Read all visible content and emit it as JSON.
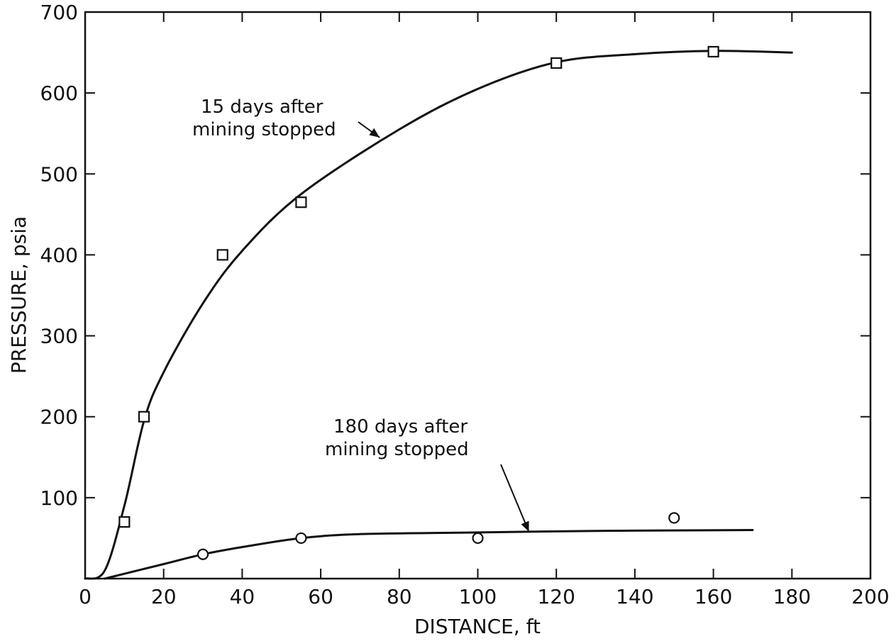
{
  "chart_data": {
    "type": "line",
    "title": "",
    "xlabel": "DISTANCE, ft",
    "ylabel": "PRESSURE, psia",
    "xlim": [
      0,
      200
    ],
    "ylim": [
      0,
      700
    ],
    "x_ticks": [
      0,
      20,
      40,
      60,
      80,
      100,
      120,
      140,
      160,
      180,
      200
    ],
    "y_ticks": [
      100,
      200,
      300,
      400,
      500,
      600,
      700
    ],
    "x_tick_labels": [
      "0",
      "20",
      "40",
      "60",
      "80",
      "100",
      "120",
      "140",
      "160",
      "180",
      "200"
    ],
    "y_tick_labels": [
      "100",
      "200",
      "300",
      "400",
      "500",
      "600",
      "700"
    ],
    "grid": false,
    "series": [
      {
        "marker": "square",
        "points": [
          {
            "x": 10,
            "y": 70
          },
          {
            "x": 15,
            "y": 200
          },
          {
            "x": 35,
            "y": 400
          },
          {
            "x": 55,
            "y": 465
          },
          {
            "x": 120,
            "y": 637
          },
          {
            "x": 160,
            "y": 651
          }
        ],
        "curve": [
          {
            "x": 0,
            "y": 0
          },
          {
            "x": 5,
            "y": 10
          },
          {
            "x": 10,
            "y": 90
          },
          {
            "x": 15,
            "y": 195
          },
          {
            "x": 20,
            "y": 255
          },
          {
            "x": 30,
            "y": 340
          },
          {
            "x": 40,
            "y": 405
          },
          {
            "x": 55,
            "y": 475
          },
          {
            "x": 80,
            "y": 555
          },
          {
            "x": 100,
            "y": 605
          },
          {
            "x": 120,
            "y": 638
          },
          {
            "x": 140,
            "y": 648
          },
          {
            "x": 160,
            "y": 652
          },
          {
            "x": 180,
            "y": 650
          }
        ]
      },
      {
        "marker": "circle",
        "points": [
          {
            "x": 30,
            "y": 30
          },
          {
            "x": 55,
            "y": 50
          },
          {
            "x": 100,
            "y": 50
          },
          {
            "x": 150,
            "y": 75
          }
        ],
        "curve": [
          {
            "x": 5,
            "y": 0
          },
          {
            "x": 20,
            "y": 18
          },
          {
            "x": 30,
            "y": 30
          },
          {
            "x": 40,
            "y": 39
          },
          {
            "x": 55,
            "y": 50
          },
          {
            "x": 70,
            "y": 55
          },
          {
            "x": 100,
            "y": 57
          },
          {
            "x": 130,
            "y": 59
          },
          {
            "x": 170,
            "y": 60
          }
        ]
      }
    ],
    "annotations": [
      {
        "lines": [
          "15 days after",
          "mining stopped"
        ],
        "points_to": {
          "x": 75,
          "y": 545
        }
      },
      {
        "lines": [
          "180 days after",
          "mining stopped"
        ],
        "points_to": {
          "x": 113,
          "y": 58
        }
      }
    ]
  }
}
